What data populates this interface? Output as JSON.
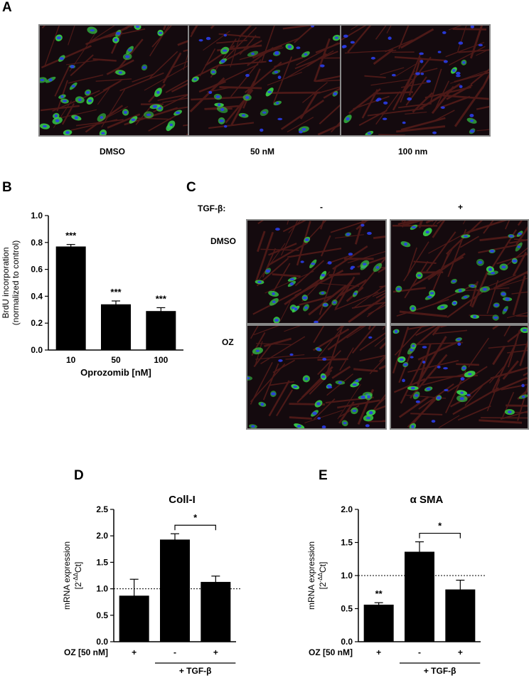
{
  "panels": {
    "A": {
      "letter": "A",
      "conditions": [
        "DMSO",
        "50 nM",
        "100 nm"
      ]
    },
    "B": {
      "letter": "B"
    },
    "C": {
      "letter": "C",
      "tgf_label": "TGF-β:",
      "tgf_neg": "-",
      "tgf_pos": "+",
      "row1": "DMSO",
      "row2": "OZ"
    },
    "D": {
      "letter": "D"
    },
    "E": {
      "letter": "E"
    }
  },
  "colors": {
    "nuclei": "#2a3de8",
    "stain": "#38d24a",
    "actin": "#7a2620",
    "background": "#140a0e",
    "bar": "#000000"
  },
  "chart_data": [
    {
      "id": "B",
      "type": "bar",
      "title": "",
      "categories": [
        "10",
        "50",
        "100"
      ],
      "values": [
        0.77,
        0.34,
        0.29
      ],
      "errors": [
        0.015,
        0.025,
        0.025
      ],
      "significance": [
        "***",
        "***",
        "***"
      ],
      "xlabel": "Oprozomib [nM]",
      "ylabel_lines": [
        "BrdU incorporation",
        "(normalized to control)"
      ],
      "ylim": [
        0,
        1.0
      ],
      "yticks": [
        "0.0",
        "0.2",
        "0.4",
        "0.6",
        "0.8",
        "1.0"
      ]
    },
    {
      "id": "D",
      "type": "bar",
      "title": "Coll-I",
      "categories": [
        "+",
        "-",
        "+"
      ],
      "values": [
        0.87,
        1.93,
        1.13
      ],
      "errors": [
        0.31,
        0.11,
        0.11
      ],
      "bar_significance": [
        "",
        "",
        ""
      ],
      "bracket_label": "*",
      "reference_line": 1.0,
      "row_label": "OZ [50 nM]",
      "group_label": "+ TGF-β",
      "ylabel": "mRNA expression",
      "ylabel2": "[2",
      "ylabel2_sup": "-ΔΔ",
      "ylabel2_end": "Ct]",
      "ylim": [
        0,
        2.5
      ],
      "yticks": [
        "0.0",
        "0.5",
        "1.0",
        "1.5",
        "2.0",
        "2.5"
      ]
    },
    {
      "id": "E",
      "type": "bar",
      "title": "α SMA",
      "categories": [
        "+",
        "-",
        "+"
      ],
      "values": [
        0.56,
        1.36,
        0.79
      ],
      "errors": [
        0.03,
        0.15,
        0.14
      ],
      "bar_significance": [
        "**",
        "",
        ""
      ],
      "bracket_label": "*",
      "reference_line": 1.0,
      "row_label": "OZ [50 nM]",
      "group_label": "+ TGF-β",
      "ylabel": "mRNA expression",
      "ylabel2": "[2",
      "ylabel2_sup": "-ΔΔ",
      "ylabel2_end": "Ct]",
      "ylim": [
        0,
        2.0
      ],
      "yticks": [
        "0.0",
        "0.5",
        "1.0",
        "1.5",
        "2.0"
      ]
    }
  ]
}
